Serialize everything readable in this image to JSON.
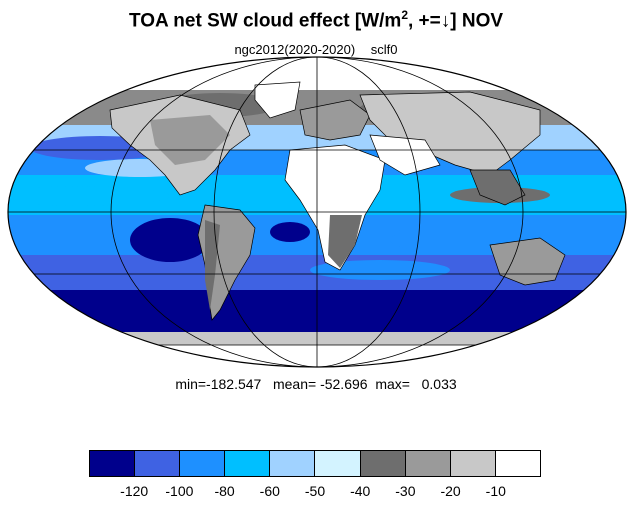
{
  "header": {
    "title_main": "TOA net SW cloud effect [W/m",
    "title_sup": "2",
    "title_rest": ", +=↓]  NOV",
    "model": "ngc2012(2020-2020)",
    "case": "sclf0"
  },
  "stats": {
    "text": "min=-182.547   mean= -52.696  max=   0.033"
  },
  "map": {
    "projection": "mollweide",
    "colors": {
      "land_outline": "#000000",
      "grid": "#000000"
    },
    "legend": [
      {
        "color": "#00008c",
        "label": "-120"
      },
      {
        "color": "#3f62e3",
        "label": "-100"
      },
      {
        "color": "#1e90ff",
        "label": "-80"
      },
      {
        "color": "#00bfff",
        "label": "-60"
      },
      {
        "color": "#a0d2ff",
        "label": "-50"
      },
      {
        "color": "#d3f3ff",
        "label": "-40"
      },
      {
        "color": "#6e6e6e",
        "label": "-30"
      },
      {
        "color": "#9a9a9a",
        "label": "-20"
      },
      {
        "color": "#c8c8c8",
        "label": "-10"
      },
      {
        "color": "#ffffff",
        "label": ""
      }
    ]
  }
}
